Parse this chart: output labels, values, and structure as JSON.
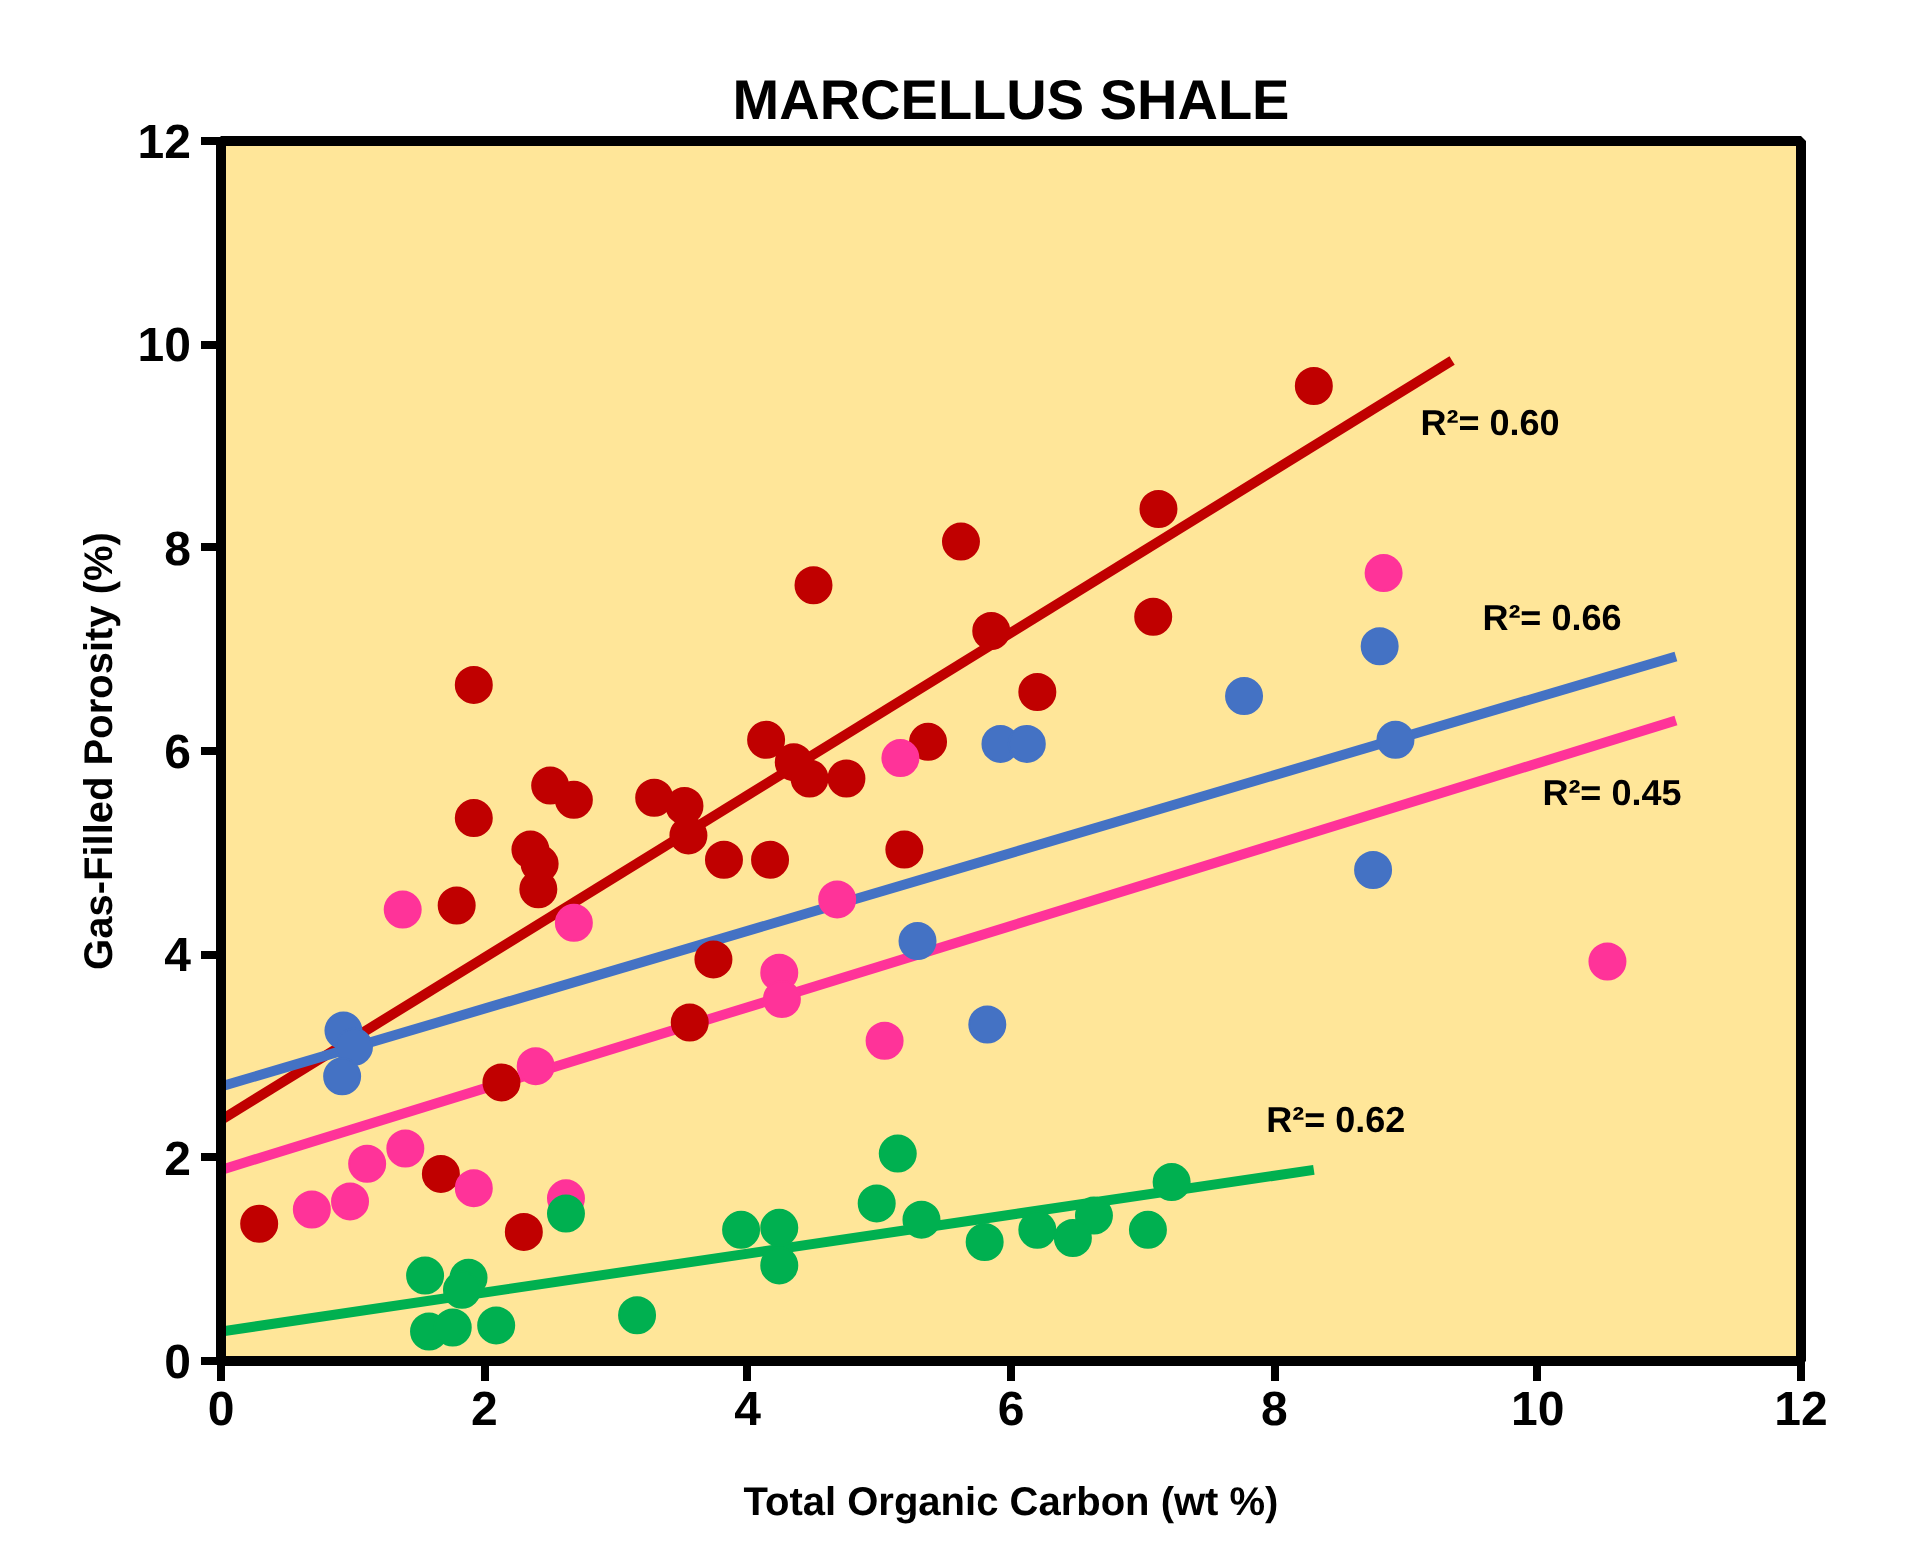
{
  "chart_data": {
    "type": "scatter",
    "title": "MARCELLUS SHALE",
    "xlabel": "Total Organic Carbon (wt %)",
    "ylabel": "Gas-Filled Porosity (%)",
    "xlim": [
      0,
      12
    ],
    "ylim": [
      0,
      12
    ],
    "xticks": [
      0,
      2,
      4,
      6,
      8,
      10,
      12
    ],
    "yticks": [
      0,
      2,
      4,
      6,
      8,
      10,
      12
    ],
    "grid": false,
    "marker": "circle",
    "series": [
      {
        "color": "#c00000",
        "x": [
          0.29,
          1.67,
          2.3,
          2.13,
          1.79,
          1.92,
          1.92,
          2.35,
          2.42,
          2.41,
          2.5,
          2.68,
          3.29,
          3.52,
          3.55,
          3.82,
          3.74,
          4.17,
          4.14,
          4.35,
          4.47,
          4.5,
          4.75,
          5.19,
          5.37,
          5.62,
          5.85,
          6.2,
          7.08,
          7.12,
          8.3,
          3.56
        ],
        "values": [
          1.35,
          1.84,
          1.27,
          2.74,
          4.48,
          5.34,
          6.65,
          5.03,
          4.89,
          4.64,
          5.66,
          5.52,
          5.54,
          5.46,
          5.17,
          4.93,
          3.95,
          4.93,
          6.11,
          5.89,
          5.73,
          7.63,
          5.73,
          5.03,
          6.09,
          8.06,
          7.18,
          6.58,
          7.32,
          8.38,
          9.59,
          3.33
        ]
      },
      {
        "color": "#ff3399",
        "x": [
          1.38,
          2.68,
          4.68,
          4.24,
          4.26,
          5.16,
          5.04,
          2.39,
          0.69,
          0.98,
          1.11,
          1.4,
          1.92,
          2.62,
          8.83,
          10.53
        ],
        "values": [
          4.44,
          4.31,
          4.54,
          3.82,
          3.56,
          5.93,
          3.15,
          2.9,
          1.49,
          1.57,
          1.94,
          2.09,
          1.7,
          1.6,
          7.75,
          3.93
        ]
      },
      {
        "color": "#4472c4",
        "x": [
          0.93,
          1.01,
          0.92,
          5.29,
          5.82,
          5.92,
          6.12,
          7.77,
          8.8,
          8.92,
          8.75
        ],
        "values": [
          3.25,
          3.09,
          2.8,
          4.13,
          3.31,
          6.07,
          6.07,
          6.54,
          7.03,
          6.11,
          4.83
        ]
      },
      {
        "color": "#00b050",
        "x": [
          1.55,
          1.88,
          1.83,
          1.58,
          1.76,
          2.09,
          2.62,
          3.16,
          3.95,
          4.24,
          4.24,
          4.98,
          5.14,
          5.32,
          5.8,
          6.2,
          6.63,
          6.47,
          7.04,
          7.22
        ],
        "values": [
          0.84,
          0.82,
          0.7,
          0.29,
          0.33,
          0.35,
          1.45,
          0.45,
          1.29,
          1.31,
          0.94,
          1.55,
          2.04,
          1.39,
          1.17,
          1.29,
          1.43,
          1.21,
          1.29,
          1.76
        ]
      },
      {
        "type": "line",
        "marker": "none",
        "color": "#c00000",
        "x": [
          0,
          9.35
        ],
        "values": [
          2.37,
          9.84
        ]
      },
      {
        "type": "line",
        "marker": "none",
        "color": "#4472c4",
        "x": [
          0,
          11.05
        ],
        "values": [
          2.7,
          6.93
        ]
      },
      {
        "type": "line",
        "marker": "none",
        "color": "#ff3399",
        "x": [
          0,
          11.05
        ],
        "values": [
          1.88,
          6.3
        ]
      },
      {
        "type": "line",
        "marker": "none",
        "color": "#00b050",
        "x": [
          0,
          8.3
        ],
        "values": [
          0.29,
          1.88
        ]
      }
    ],
    "annotations": [
      "R²= 0.60",
      "R²= 0.66",
      "R²= 0.45",
      "R²= 0.62"
    ]
  }
}
